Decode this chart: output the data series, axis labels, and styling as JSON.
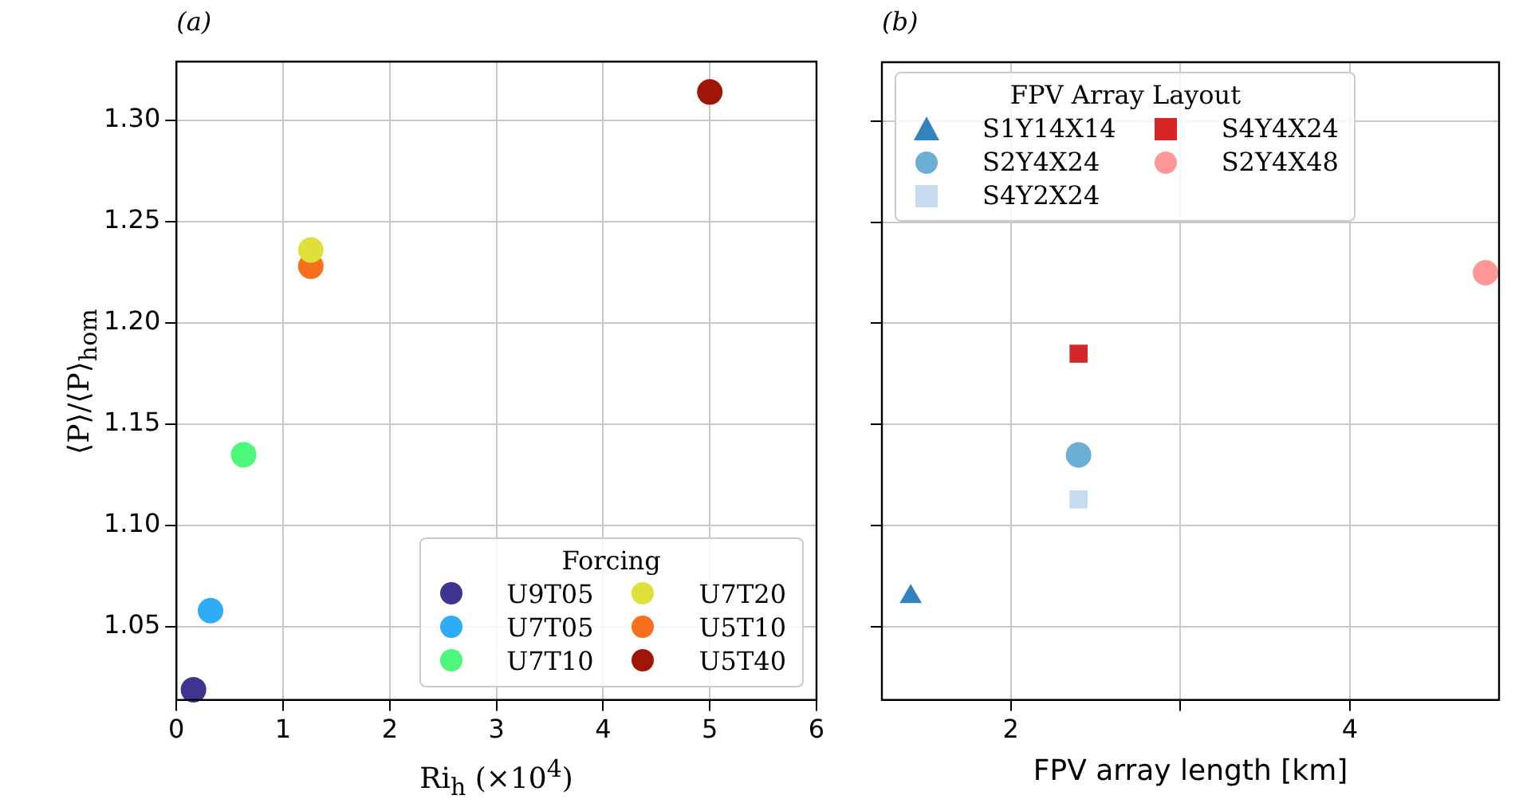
{
  "chart_data": [
    {
      "type": "scatter",
      "title": "(a)",
      "xlabel": "Ri$_{h}$ (×10$^{4}$)",
      "ylabel": "⟨P⟩/⟨P⟩$_{hom}$",
      "legend_title": "Forcing",
      "legend": "bottom right",
      "grid": true,
      "marker": "circle",
      "xlim": [
        0,
        6
      ],
      "xticks": [
        0,
        1,
        2,
        3,
        4,
        5,
        6
      ],
      "ylim": [
        1.014,
        1.329
      ],
      "yticks": [
        1.05,
        {
          "value": 1.1,
          "label": "1.10"
        },
        1.15,
        {
          "value": 1.2,
          "label": "1.20"
        },
        1.25,
        {
          "value": 1.3,
          "label": "1.30"
        }
      ],
      "series": [
        {
          "name": "U9T05",
          "color": "#3d3590",
          "x": [
            0.16
          ],
          "values": [
            1.019
          ]
        },
        {
          "name": "U7T05",
          "color": "#30abf5",
          "x": [
            0.32
          ],
          "values": [
            1.058
          ]
        },
        {
          "name": "U7T10",
          "color": "#4cf77a",
          "x": [
            0.63
          ],
          "values": [
            1.135
          ]
        },
        {
          "name": "U7T20",
          "color": "#dde13a",
          "x": [
            1.26
          ],
          "values": [
            1.236
          ]
        },
        {
          "name": "U5T10",
          "color": "#f86f1d",
          "x": [
            1.26
          ],
          "values": [
            1.228
          ]
        },
        {
          "name": "U5T40",
          "color": "#a01606",
          "x": [
            5.0
          ],
          "values": [
            1.314
          ]
        }
      ]
    },
    {
      "type": "scatter",
      "title": "(b)",
      "xlabel": "FPV array length [km]",
      "legend_title": "FPV Array Layout",
      "legend": "top left",
      "grid": true,
      "tick_labels": "x",
      "xlim": [
        1.24,
        4.88
      ],
      "xticks": [
        2,
        {
          "value": 3,
          "label": null
        },
        4
      ],
      "ylim": [
        1.014,
        1.329
      ],
      "yticks": [
        1.05,
        1.1,
        1.15,
        1.2,
        1.25,
        1.3
      ],
      "series": [
        {
          "name": "S1Y14X14",
          "color": "#3182bd",
          "marker": "triangle",
          "x": [
            1.41
          ],
          "values": [
            1.065
          ]
        },
        {
          "name": "S2Y4X24",
          "color": "#6baed6",
          "marker": "circle",
          "x": [
            2.4
          ],
          "values": [
            1.135
          ]
        },
        {
          "name": "S4Y2X24",
          "color": "#c6dbef",
          "marker": "square",
          "x": [
            2.4
          ],
          "values": [
            1.113
          ]
        },
        {
          "name": "S4Y4X24",
          "color": "#d62728",
          "marker": "square",
          "x": [
            2.4
          ],
          "values": [
            1.185
          ]
        },
        {
          "name": "S2Y4X48",
          "color": "#ff9896",
          "marker": "circle",
          "x": [
            4.8
          ],
          "values": [
            1.225
          ]
        }
      ]
    }
  ]
}
